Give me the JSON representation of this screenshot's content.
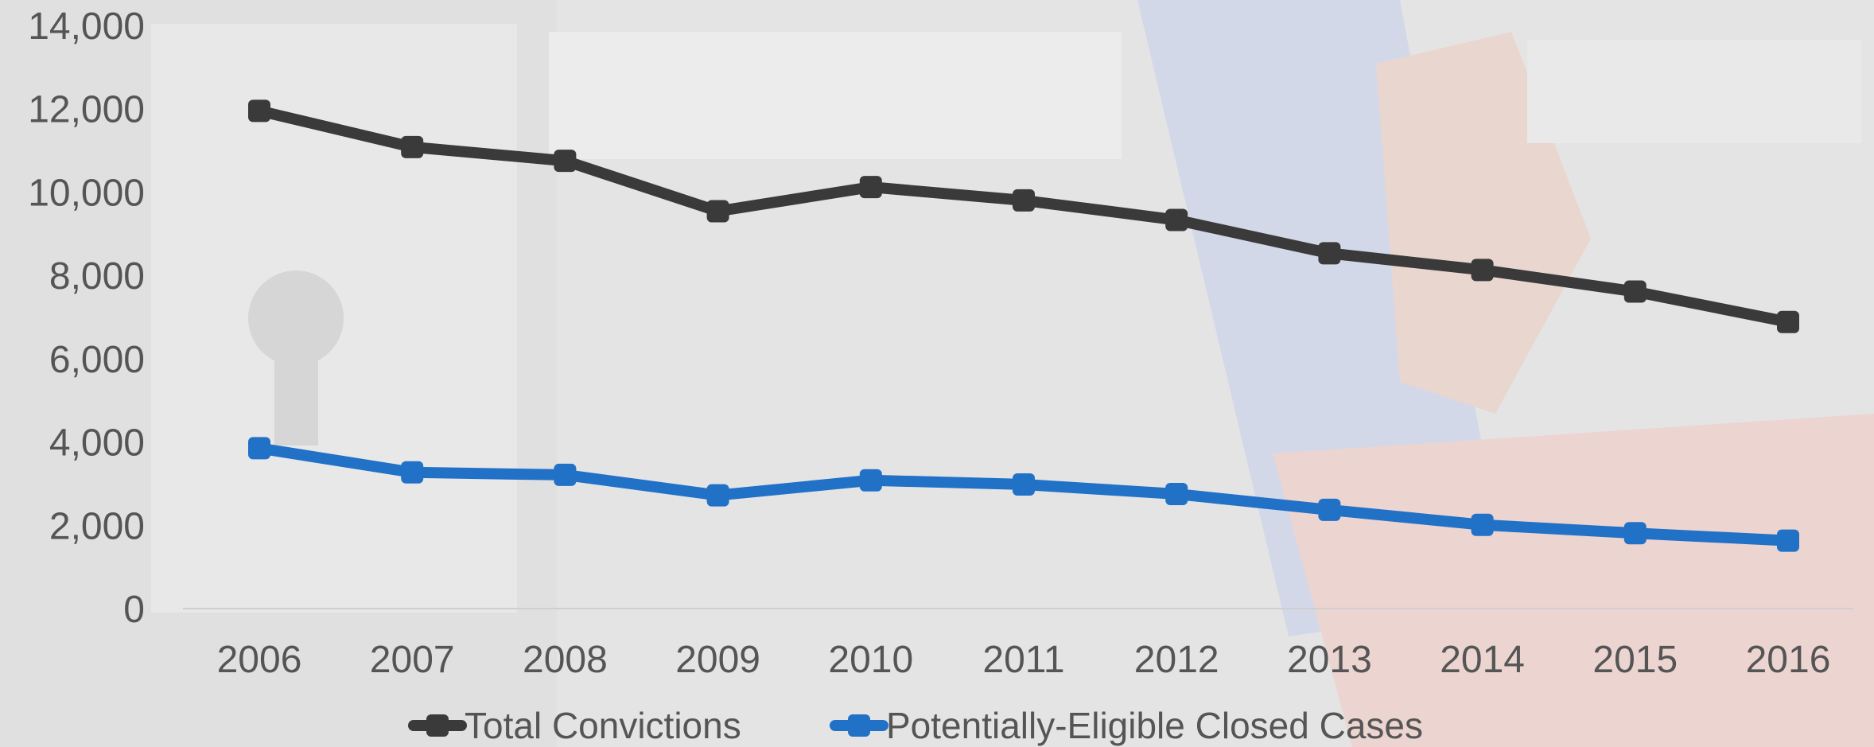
{
  "chart_data": {
    "type": "line",
    "title": "",
    "xlabel": "",
    "ylabel": "",
    "categories": [
      "2006",
      "2007",
      "2008",
      "2009",
      "2010",
      "2011",
      "2012",
      "2013",
      "2014",
      "2015",
      "2016"
    ],
    "ylim": [
      0,
      14000
    ],
    "yticks": [
      0,
      2000,
      4000,
      6000,
      8000,
      10000,
      12000,
      14000
    ],
    "ytick_labels": [
      "0",
      "2,000",
      "4,000",
      "6,000",
      "8,000",
      "10,000",
      "12,000",
      "14,000"
    ],
    "grid": false,
    "legend_position": "bottom",
    "series": [
      {
        "name": "Total Convictions",
        "color": "#3a3a3a",
        "values": [
          11950,
          11080,
          10750,
          9540,
          10120,
          9800,
          9330,
          8530,
          8130,
          7610,
          6880
        ]
      },
      {
        "name": "Potentially-Eligible Closed Cases",
        "color": "#2171c7",
        "values": [
          3850,
          3270,
          3210,
          2720,
          3080,
          2980,
          2750,
          2370,
          2010,
          1810,
          1630
        ]
      }
    ]
  }
}
